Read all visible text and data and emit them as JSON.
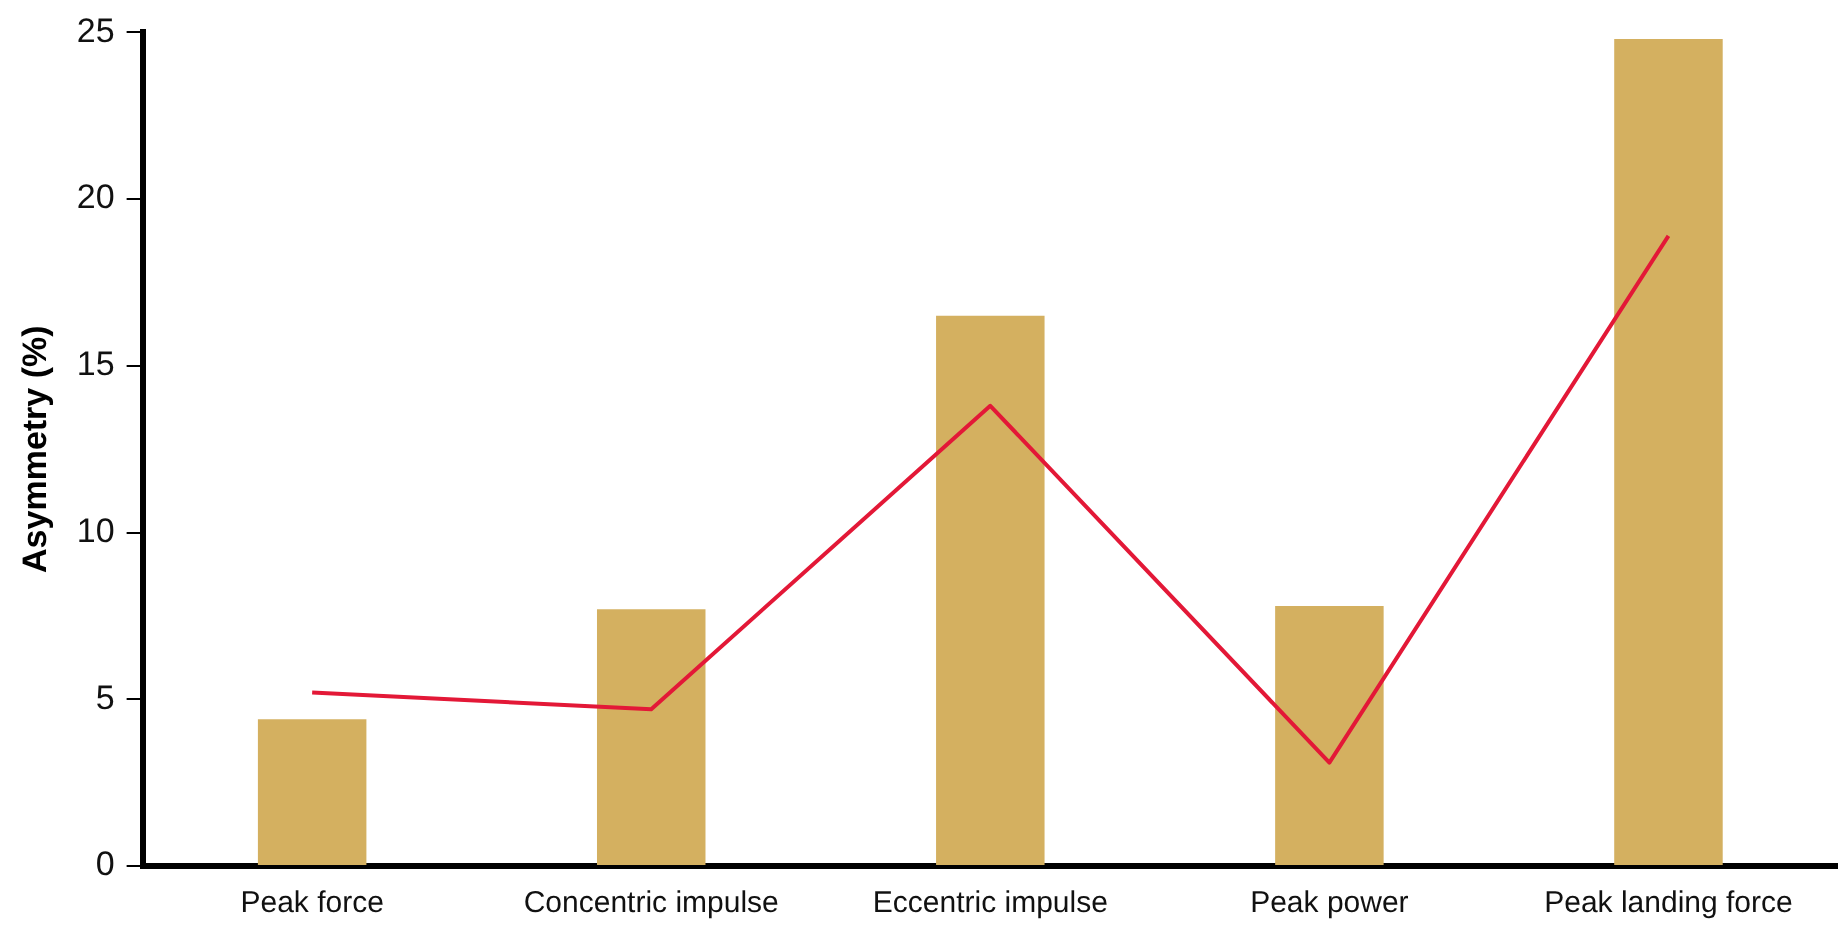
{
  "chart_data": {
    "type": "bar",
    "ylabel": "Asymmetry (%)",
    "categories": [
      "Peak force",
      "Concentric impulse",
      "Eccentric impulse",
      "Peak power",
      "Peak landing force"
    ],
    "series": [
      {
        "color": "#d4b060",
        "values": [
          4.4,
          7.7,
          16.5,
          7.8,
          24.8
        ]
      },
      {
        "type": "line",
        "color": "#e31837",
        "values": [
          5.2,
          4.7,
          13.8,
          3.1,
          18.9
        ]
      }
    ],
    "ylim": [
      0,
      25
    ],
    "yticks": [
      0,
      5,
      10,
      15,
      20,
      25
    ],
    "grid": false,
    "legend": false,
    "marker": "none",
    "line_style": "solid"
  }
}
